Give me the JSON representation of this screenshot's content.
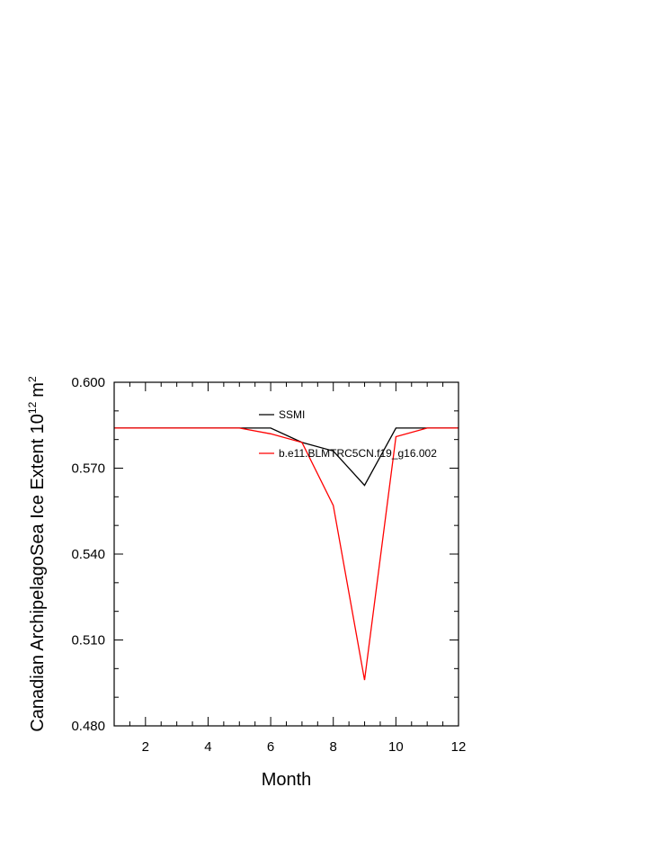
{
  "chart_data": {
    "type": "line",
    "xlabel": "Month",
    "ylabel": {
      "text": "Canadian ArchipelagoSea Ice Extent 10",
      "superscript": "12",
      "unit": "m",
      "unit_superscript": "2"
    },
    "xlim": [
      1,
      12
    ],
    "ylim": [
      0.48,
      0.6
    ],
    "x_ticks": [
      2,
      4,
      6,
      8,
      10,
      12
    ],
    "x_tick_labels": [
      "2",
      "4",
      "6",
      "8",
      "10",
      "12"
    ],
    "y_ticks": [
      0.48,
      0.51,
      0.54,
      0.57,
      0.6
    ],
    "y_tick_labels": [
      "0.480",
      "0.510",
      "0.540",
      "0.570",
      "0.600"
    ],
    "grid": false,
    "legend_position": "top-center inside plot",
    "x": [
      1,
      2,
      3,
      4,
      5,
      6,
      7,
      8,
      9,
      10,
      11,
      12
    ],
    "series": [
      {
        "name": "SSMI",
        "color": "#000000",
        "values": [
          0.584,
          0.584,
          0.584,
          0.584,
          0.584,
          0.584,
          0.579,
          0.576,
          0.564,
          0.584,
          0.584,
          0.584
        ]
      },
      {
        "name": "b.e11.BLMTRC5CN.f19_g16.002",
        "color": "#ff0000",
        "values": [
          0.584,
          0.584,
          0.584,
          0.584,
          0.584,
          0.582,
          0.579,
          0.557,
          0.496,
          0.581,
          0.584,
          0.584
        ]
      }
    ]
  }
}
